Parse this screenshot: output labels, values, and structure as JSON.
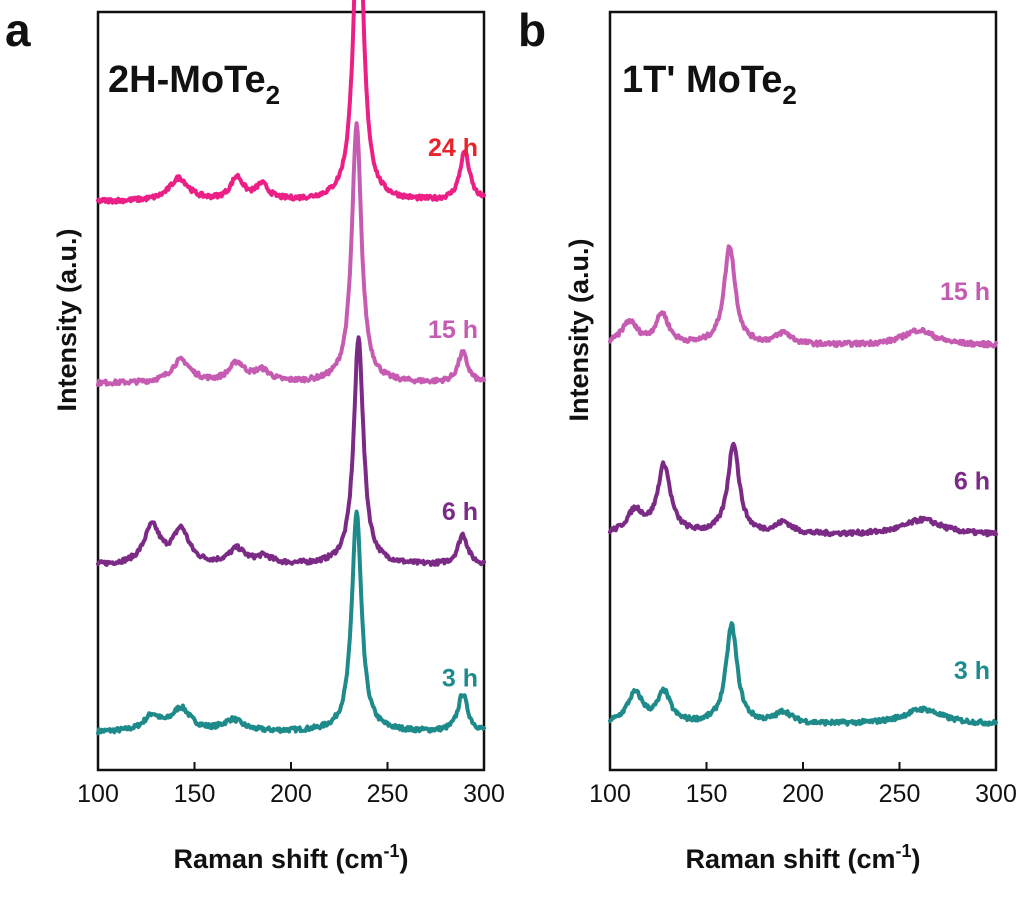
{
  "chart_data": [
    {
      "type": "line",
      "panel_label": "a",
      "title": "2H-MoTe",
      "title_subscript": "2",
      "xlabel": "Raman shift (cm",
      "xlabel_superscript": "-1",
      "xlabel_suffix": ")",
      "ylabel": "Intensity (a.u.)",
      "xlim": [
        100,
        300
      ],
      "xticks": [
        100,
        150,
        200,
        250,
        300
      ],
      "y_values_shown": false,
      "series": [
        {
          "name": "3 h",
          "color": "#1f8a8a",
          "baseline": 0.05,
          "peaks": [
            [
              128,
              0.02,
              5
            ],
            [
              143,
              0.03,
              6
            ],
            [
              170,
              0.015,
              6
            ],
            [
              234,
              0.29,
              3
            ],
            [
              289,
              0.05,
              3
            ]
          ]
        },
        {
          "name": "6 h",
          "color": "#7b2a86",
          "baseline": 0.27,
          "peaks": [
            [
              128,
              0.05,
              5
            ],
            [
              143,
              0.045,
              5
            ],
            [
              172,
              0.02,
              5
            ],
            [
              186,
              0.01,
              5
            ],
            [
              235,
              0.3,
              3
            ],
            [
              289,
              0.04,
              3
            ]
          ]
        },
        {
          "name": "15 h",
          "color": "#c65bb2",
          "baseline": 0.51,
          "peaks": [
            [
              143,
              0.03,
              6
            ],
            [
              172,
              0.025,
              5
            ],
            [
              185,
              0.015,
              5
            ],
            [
              234,
              0.34,
              3
            ],
            [
              289,
              0.04,
              3
            ]
          ]
        },
        {
          "name": "24 h",
          "color": "#ec1f86",
          "baseline": 0.75,
          "peaks": [
            [
              142,
              0.03,
              6
            ],
            [
              172,
              0.03,
              4
            ],
            [
              185,
              0.02,
              4
            ],
            [
              235,
              0.42,
              3
            ],
            [
              290,
              0.065,
              3
            ]
          ]
        }
      ],
      "label_colors": {
        "3 h": "#1f8a8a",
        "6 h": "#7b2a86",
        "15 h": "#c65bb2",
        "24 h": "#e8242a"
      }
    },
    {
      "type": "line",
      "panel_label": "b",
      "title": "1T' MoTe",
      "title_subscript": "2",
      "xlabel": "Raman shift (cm",
      "xlabel_superscript": "-1",
      "xlabel_suffix": ")",
      "ylabel": "Intensity (a.u.)",
      "xlim": [
        100,
        300
      ],
      "xticks": [
        100,
        150,
        200,
        250,
        300
      ],
      "y_values_shown": false,
      "series": [
        {
          "name": "3 h",
          "color": "#1f8a8a",
          "baseline": 0.06,
          "peaks": [
            [
              113,
              0.04,
              5
            ],
            [
              128,
              0.04,
              4
            ],
            [
              163,
              0.13,
              3.5
            ],
            [
              190,
              0.015,
              5
            ],
            [
              262,
              0.02,
              12
            ]
          ]
        },
        {
          "name": "6 h",
          "color": "#7b2a86",
          "baseline": 0.31,
          "peaks": [
            [
              113,
              0.03,
              5
            ],
            [
              128,
              0.09,
              4
            ],
            [
              164,
              0.12,
              3.5
            ],
            [
              190,
              0.015,
              5
            ],
            [
              262,
              0.02,
              12
            ]
          ]
        },
        {
          "name": "15 h",
          "color": "#c65bb2",
          "baseline": 0.56,
          "peaks": [
            [
              110,
              0.03,
              5
            ],
            [
              127,
              0.04,
              4
            ],
            [
              162,
              0.13,
              3.5
            ],
            [
              190,
              0.015,
              5
            ],
            [
              260,
              0.02,
              10
            ]
          ]
        }
      ],
      "label_colors": {
        "3 h": "#1f8a8a",
        "6 h": "#7b2a86",
        "15 h": "#c65bb2"
      }
    }
  ]
}
